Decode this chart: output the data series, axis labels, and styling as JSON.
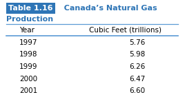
{
  "title_box_text": "Table 1.16",
  "title_rest": "  Canada’s Natural Gas",
  "title_line2": "Production",
  "col_headers": [
    "Year",
    "Cubic Feet (trillions)"
  ],
  "rows": [
    [
      "1997",
      "5.76"
    ],
    [
      "1998",
      "5.98"
    ],
    [
      "1999",
      "6.26"
    ],
    [
      "2000",
      "6.47"
    ],
    [
      "2001",
      "6.60"
    ]
  ],
  "title_box_bg": "#2E75B6",
  "title_box_text_color": "#ffffff",
  "title_text_color": "#2E75B6",
  "header_text_color": "#000000",
  "data_text_color": "#000000",
  "bg_color": "#ffffff",
  "line_color": "#5B9BD5",
  "header_fontsize": 7.5,
  "data_fontsize": 7.5,
  "title_fontsize": 8.0
}
